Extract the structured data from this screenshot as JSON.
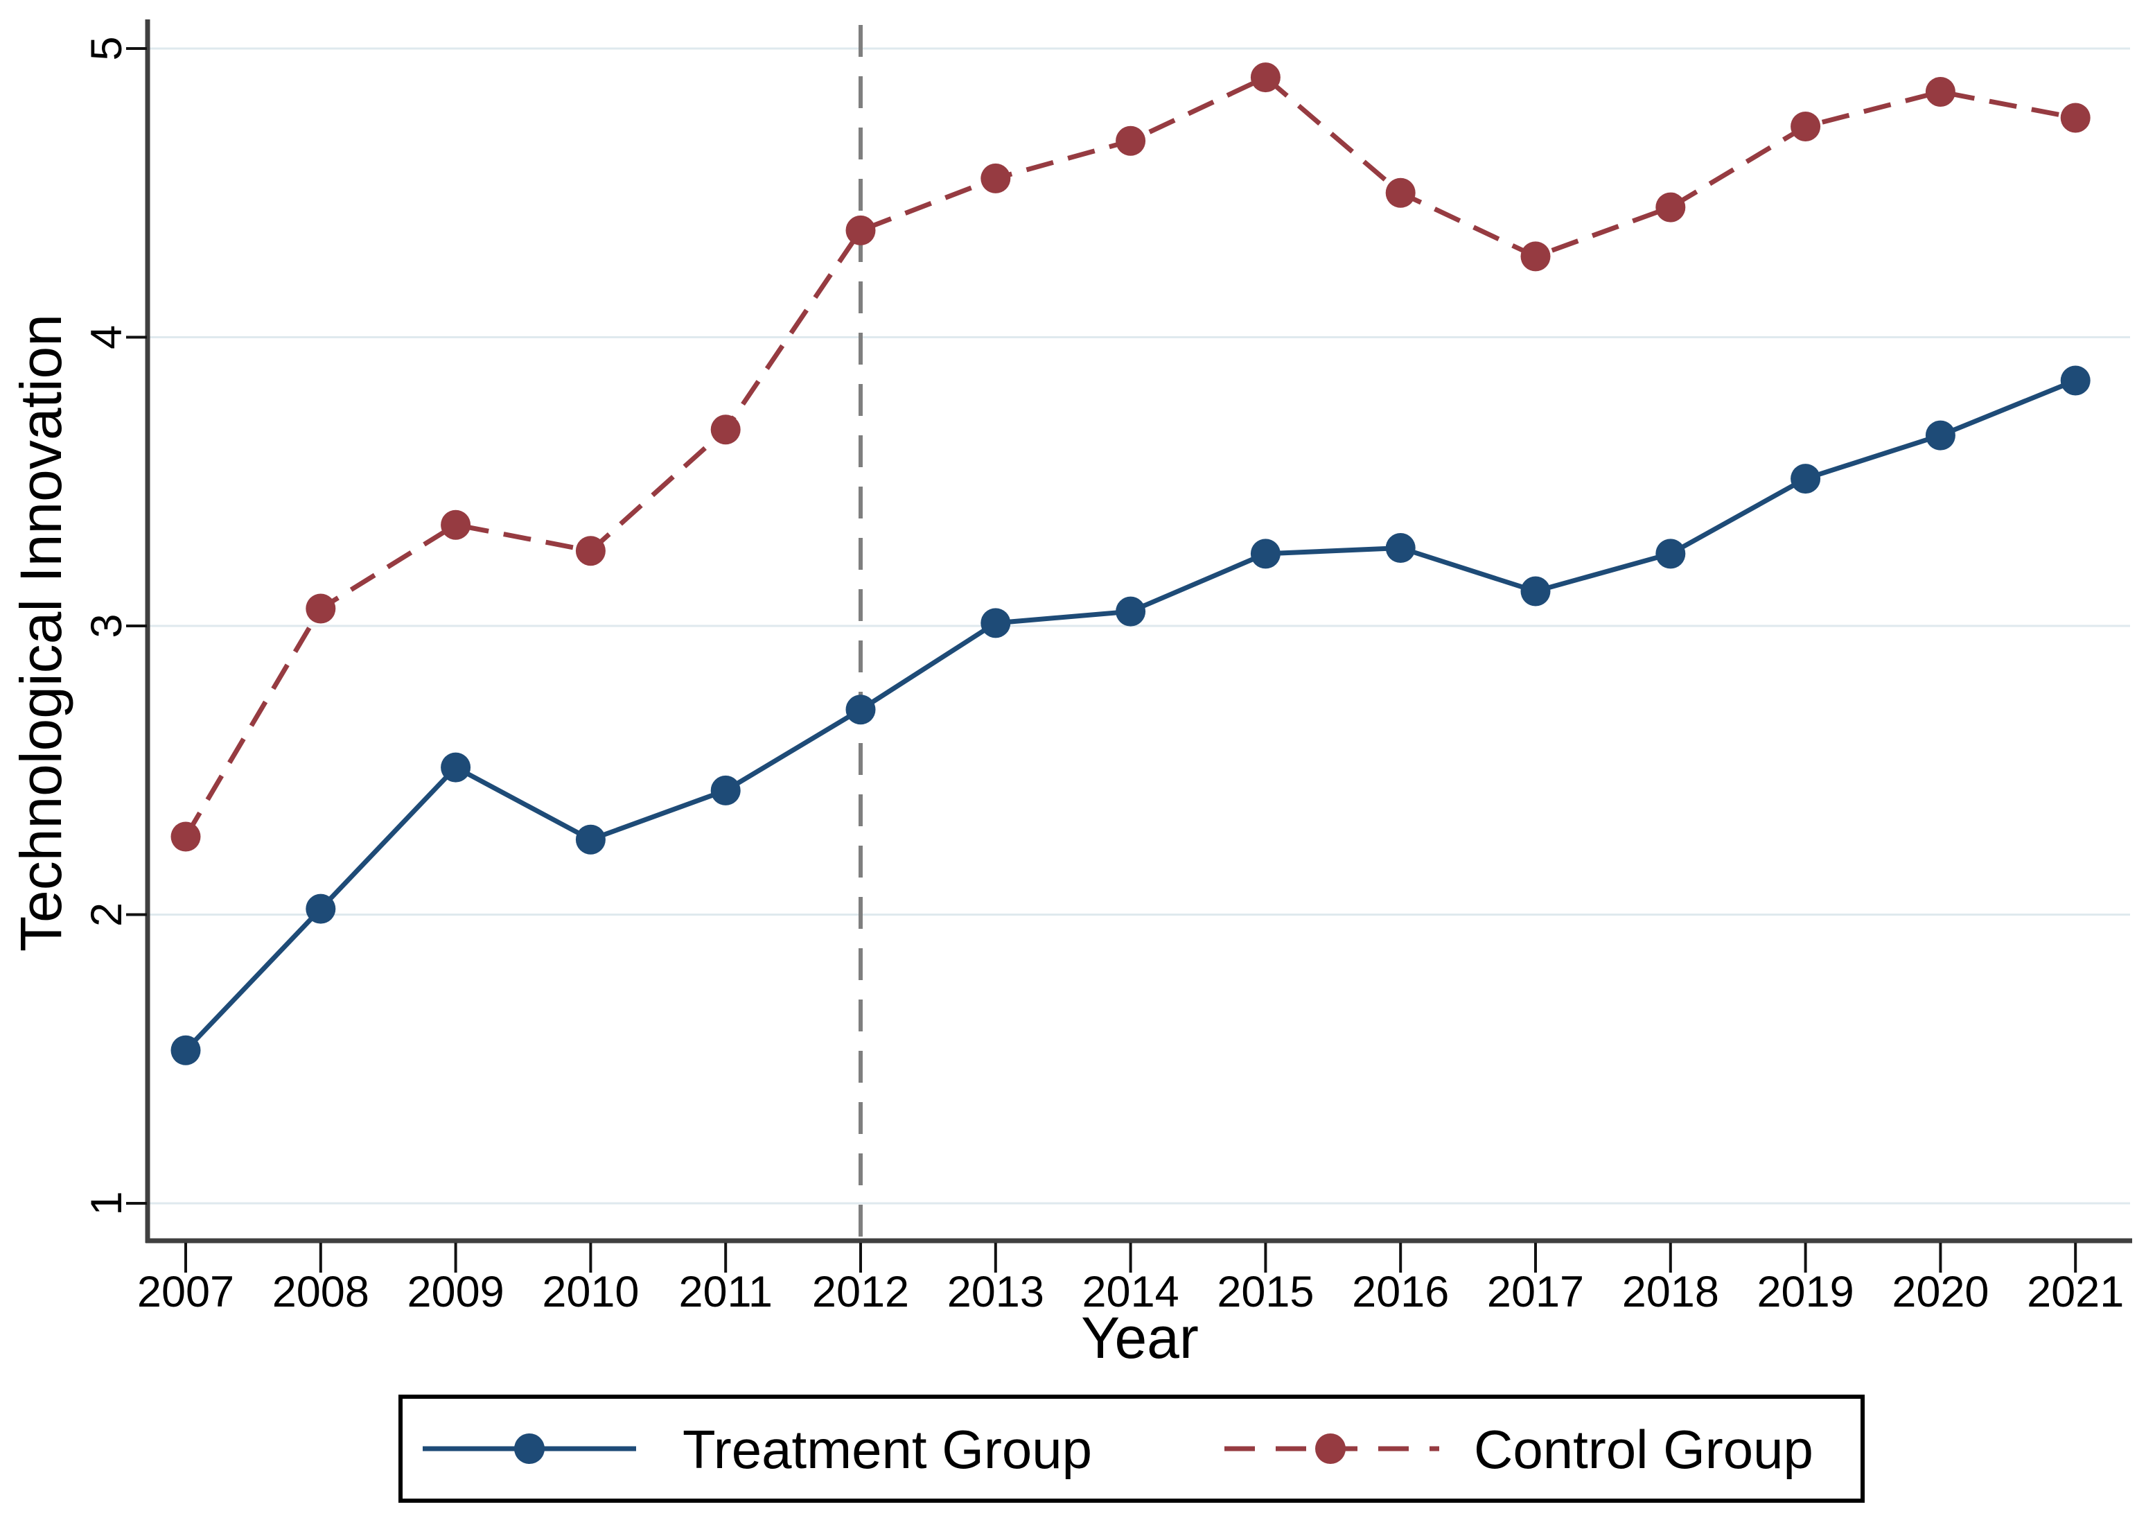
{
  "chart_data": {
    "type": "line",
    "title": "",
    "xlabel": "Year",
    "ylabel": "Technological Innovation",
    "x": [
      2007,
      2008,
      2009,
      2010,
      2011,
      2012,
      2013,
      2014,
      2015,
      2016,
      2017,
      2018,
      2019,
      2020,
      2021
    ],
    "series": [
      {
        "name": "Treatment Group",
        "color": "#1e4b77",
        "line_style": "solid",
        "marker": "circle",
        "values": [
          1.53,
          2.02,
          2.51,
          2.26,
          2.43,
          2.71,
          3.01,
          3.05,
          3.25,
          3.27,
          3.12,
          3.25,
          3.51,
          3.66,
          3.85
        ]
      },
      {
        "name": "Control Group",
        "color": "#963b41",
        "line_style": "dashed",
        "marker": "circle",
        "values": [
          2.27,
          3.06,
          3.35,
          3.26,
          3.68,
          4.37,
          4.55,
          4.68,
          4.9,
          4.5,
          4.28,
          4.45,
          4.73,
          4.85,
          4.76
        ]
      }
    ],
    "ylim": [
      1,
      5
    ],
    "yticks": [
      1,
      2,
      3,
      4,
      5
    ],
    "grid": "horizontal-light",
    "reference_line_x": 2012,
    "legend_position": "bottom-center"
  },
  "colors": {
    "grid": "#dfe9ee",
    "axis": "#404040",
    "tick": "#111111",
    "reference_line": "#7f7f7f",
    "legend_border": "#000000",
    "background": "#ffffff"
  }
}
